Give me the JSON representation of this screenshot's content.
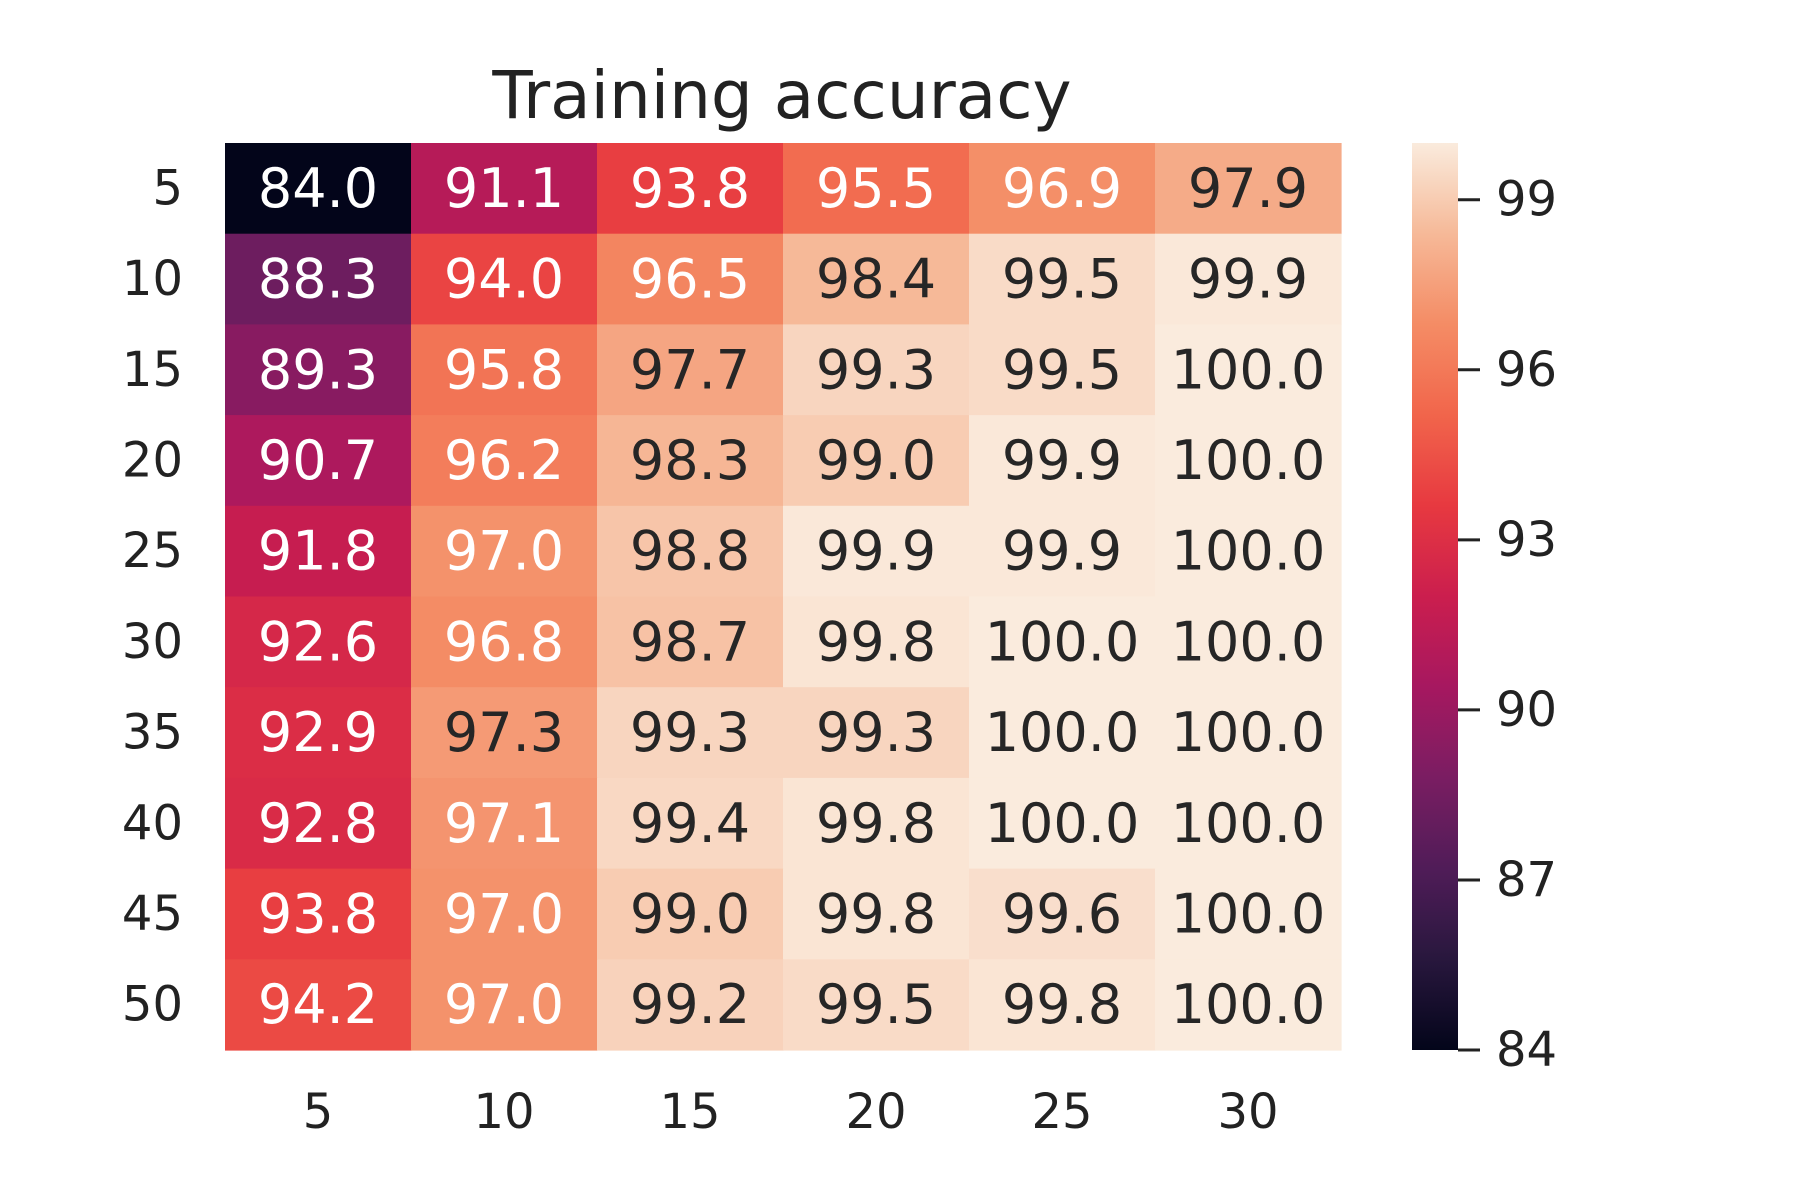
{
  "chart_data": {
    "type": "heatmap",
    "title": "Training accuracy",
    "xlabel": "",
    "ylabel": "",
    "x_categories": [
      "5",
      "10",
      "15",
      "20",
      "25",
      "30"
    ],
    "y_categories": [
      "5",
      "10",
      "15",
      "20",
      "25",
      "30",
      "35",
      "40",
      "45",
      "50"
    ],
    "values": [
      [
        84.0,
        91.1,
        93.8,
        95.5,
        96.9,
        97.9
      ],
      [
        88.3,
        94.0,
        96.5,
        98.4,
        99.5,
        99.9
      ],
      [
        89.3,
        95.8,
        97.7,
        99.3,
        99.5,
        100.0
      ],
      [
        90.7,
        96.2,
        98.3,
        99.0,
        99.9,
        100.0
      ],
      [
        91.8,
        97.0,
        98.8,
        99.9,
        99.9,
        100.0
      ],
      [
        92.6,
        96.8,
        98.7,
        99.8,
        100.0,
        100.0
      ],
      [
        92.9,
        97.3,
        99.3,
        99.3,
        100.0,
        100.0
      ],
      [
        92.8,
        97.1,
        99.4,
        99.8,
        100.0,
        100.0
      ],
      [
        93.8,
        97.0,
        99.0,
        99.8,
        99.6,
        100.0
      ],
      [
        94.2,
        97.0,
        99.2,
        99.5,
        99.8,
        100.0
      ]
    ],
    "colormap": "rocket",
    "vmin": 84.0,
    "vmax": 100.0,
    "colorbar_ticks": [
      84,
      87,
      90,
      93,
      96,
      99
    ],
    "grid": false
  }
}
